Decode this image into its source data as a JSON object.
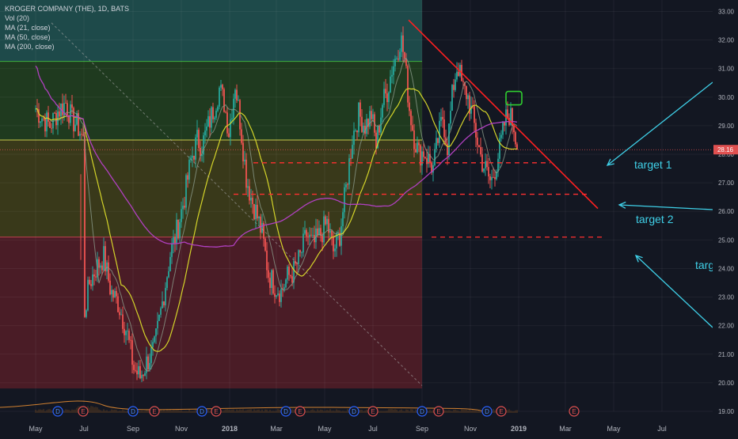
{
  "legend": {
    "symbol": "KROGER COMPANY (THE), 1D, BATS",
    "volume": "Vol (20)",
    "ma21": "MA (21, close)",
    "ma50": "MA (50, close)",
    "ma200": "MA (200, close)"
  },
  "colors": {
    "background": "#131722",
    "zone_teal": "#1e4a4a",
    "zone_green": "#1f3a1f",
    "zone_olive": "#39391a",
    "zone_red": "#4a1c26",
    "up_candle": "#26a69a",
    "down_candle": "#ef5350",
    "ma21": "#8a9a8a",
    "ma50": "#d4d42a",
    "ma200": "#b040c0",
    "trendline": "#ff2020",
    "target_dash": "#ff3030",
    "arrow": "#3fd0e8",
    "price_tag": "#e05050"
  },
  "chart_data": {
    "type": "candlestick",
    "y_axis": {
      "ylim": [
        19.0,
        33.4
      ],
      "ticks": [
        "33.00",
        "32.00",
        "31.00",
        "30.00",
        "29.00",
        "28.00",
        "27.00",
        "26.00",
        "25.00",
        "24.00",
        "23.00",
        "22.00",
        "21.00",
        "20.00",
        "19.00"
      ],
      "tick_values": [
        33,
        32,
        31,
        30,
        29,
        28,
        27,
        26,
        25,
        24,
        23,
        22,
        21,
        20,
        19
      ]
    },
    "x_axis": {
      "labels": [
        "May",
        "Jul",
        "Sep",
        "Nov",
        "2018",
        "Mar",
        "May",
        "Jul",
        "Sep",
        "Nov",
        "2019",
        "Mar",
        "May",
        "Jul"
      ],
      "label_day": [
        0,
        61,
        123,
        184,
        245,
        304,
        365,
        426,
        488,
        549,
        610,
        669,
        730,
        791
      ]
    },
    "last_price": "28.16",
    "last_value": 28.16,
    "ohlc_anchor_closes": [
      [
        0,
        29.6
      ],
      [
        8,
        29.3
      ],
      [
        18,
        29.0
      ],
      [
        28,
        29.5
      ],
      [
        38,
        29.8
      ],
      [
        46,
        29.2
      ],
      [
        53,
        29.0
      ],
      [
        60,
        28.5
      ],
      [
        62,
        22.5
      ],
      [
        68,
        23.5
      ],
      [
        76,
        24.0
      ],
      [
        86,
        24.4
      ],
      [
        95,
        23.2
      ],
      [
        104,
        22.8
      ],
      [
        115,
        21.8
      ],
      [
        124,
        20.5
      ],
      [
        132,
        20.2
      ],
      [
        140,
        20.7
      ],
      [
        150,
        21.2
      ],
      [
        160,
        22.8
      ],
      [
        170,
        24.5
      ],
      [
        180,
        25.5
      ],
      [
        188,
        26.5
      ],
      [
        196,
        27.8
      ],
      [
        204,
        28.5
      ],
      [
        210,
        28.3
      ],
      [
        218,
        29.0
      ],
      [
        226,
        29.7
      ],
      [
        232,
        30.3
      ],
      [
        238,
        29.8
      ],
      [
        244,
        28.8
      ],
      [
        252,
        30.5
      ],
      [
        258,
        29.2
      ],
      [
        266,
        27.2
      ],
      [
        272,
        26.5
      ],
      [
        278,
        26.0
      ],
      [
        286,
        25.2
      ],
      [
        294,
        23.8
      ],
      [
        302,
        23.4
      ],
      [
        310,
        23.2
      ],
      [
        318,
        23.7
      ],
      [
        326,
        23.9
      ],
      [
        334,
        24.4
      ],
      [
        342,
        25.2
      ],
      [
        350,
        24.8
      ],
      [
        360,
        25.2
      ],
      [
        368,
        25.6
      ],
      [
        376,
        24.6
      ],
      [
        384,
        25.2
      ],
      [
        392,
        26.8
      ],
      [
        400,
        28.6
      ],
      [
        408,
        29.4
      ],
      [
        416,
        29.0
      ],
      [
        424,
        29.4
      ],
      [
        430,
        28.3
      ],
      [
        438,
        29.8
      ],
      [
        444,
        30.2
      ],
      [
        450,
        31.0
      ],
      [
        456,
        31.5
      ],
      [
        461,
        32.1
      ],
      [
        466,
        31.3
      ],
      [
        472,
        29.6
      ],
      [
        478,
        28.6
      ],
      [
        484,
        28.0
      ],
      [
        490,
        28.1
      ],
      [
        496,
        27.8
      ],
      [
        502,
        27.5
      ],
      [
        508,
        28.5
      ],
      [
        514,
        29.3
      ],
      [
        520,
        28.3
      ],
      [
        527,
        30.3
      ],
      [
        533,
        31.2
      ],
      [
        539,
        30.3
      ],
      [
        545,
        30.1
      ],
      [
        551,
        29.4
      ],
      [
        557,
        28.6
      ],
      [
        563,
        27.8
      ],
      [
        569,
        27.4
      ],
      [
        575,
        27.0
      ],
      [
        581,
        27.6
      ],
      [
        587,
        28.3
      ],
      [
        593,
        29.2
      ],
      [
        598,
        29.4
      ],
      [
        604,
        29.0
      ],
      [
        608,
        28.16
      ]
    ],
    "volume_range": [
      0,
      1
    ]
  },
  "annotations": {
    "target1_label": "target 1",
    "target2_label": "target 2",
    "target3_label": "targ",
    "target1_price": 28.16,
    "target2_price": 26.6,
    "target3_price": 25.1,
    "resistance_levels": [
      31.25,
      28.5,
      25.1
    ],
    "zone_boundaries": [
      31.25,
      28.5,
      25.1
    ]
  },
  "events": {
    "markers": [
      "D",
      "E",
      "D",
      "E",
      "D",
      "E",
      "D",
      "E",
      "D",
      "E",
      "D",
      "E",
      "D",
      "E",
      "E"
    ]
  }
}
